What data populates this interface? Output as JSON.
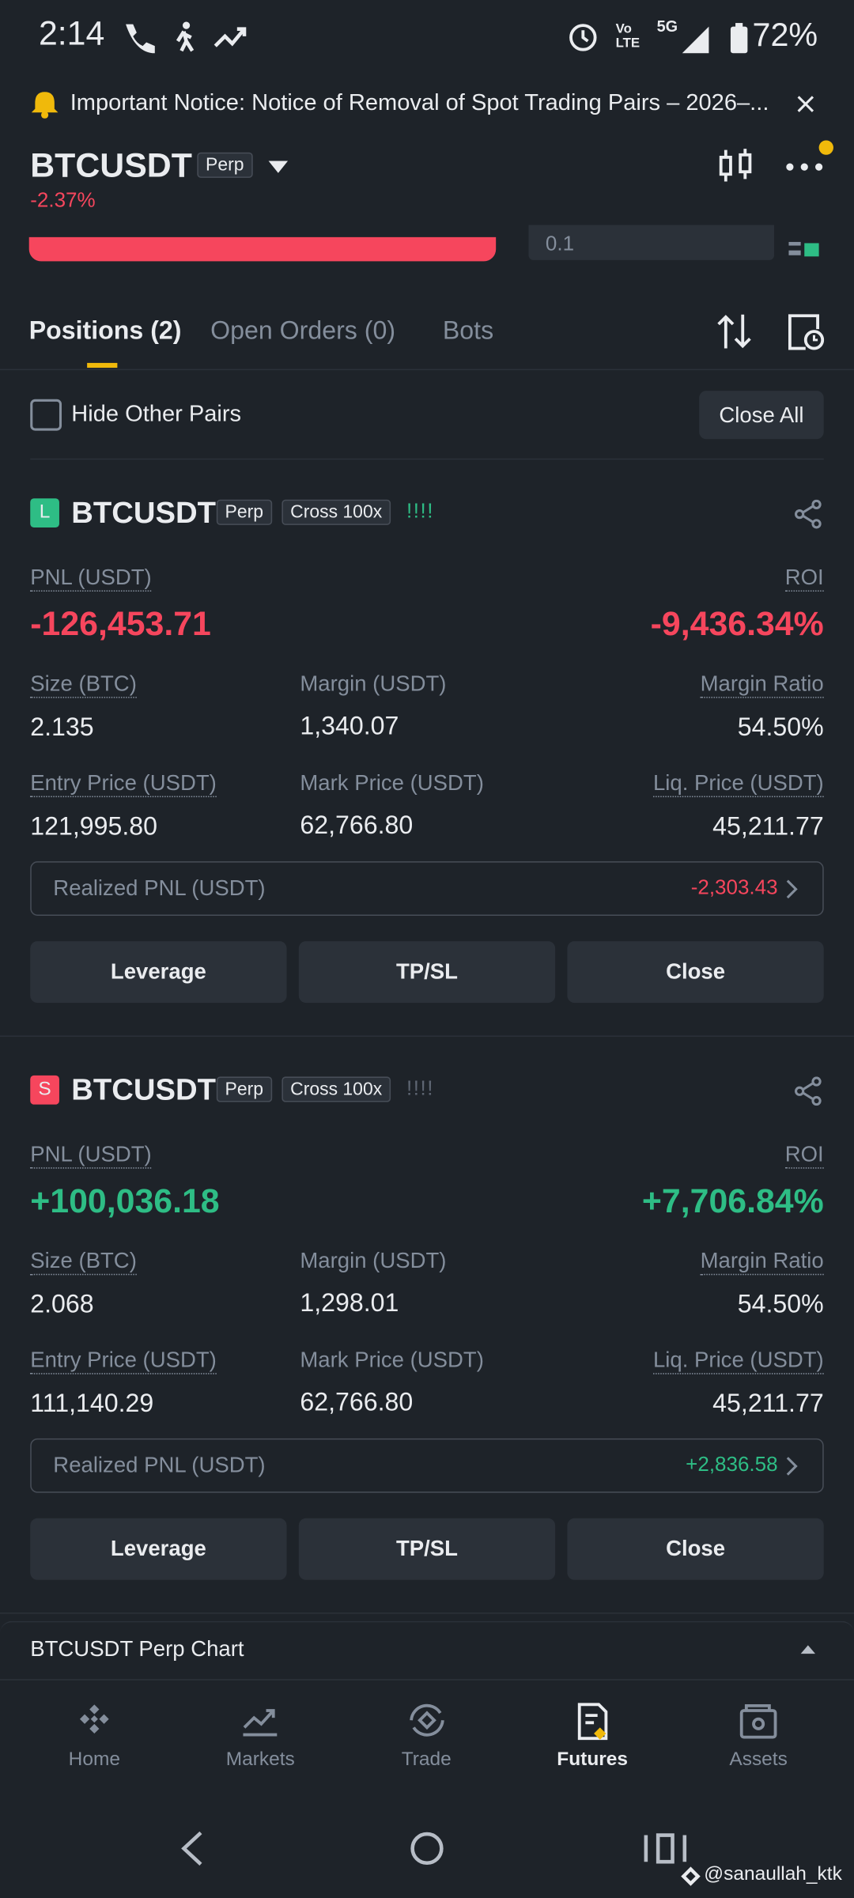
{
  "status_bar": {
    "time": "2:14",
    "vo": "Vo",
    "lte": "LTE",
    "network": "5G",
    "battery": "72%"
  },
  "notice": "Important Notice: Notice of Removal of Spot Trading Pairs – 2026–...",
  "header": {
    "symbol": "BTCUSDT",
    "badge": "Perp",
    "change": "-2.37%"
  },
  "order_amount": "0.1",
  "tabs": [
    "Positions (2)",
    "Open Orders (0)",
    "Bots"
  ],
  "filter": {
    "label": "Hide Other Pairs",
    "button": "Close All"
  },
  "positions": [
    {
      "side": "L",
      "symbol": "BTCUSDT",
      "badges": [
        "Perp",
        "Cross 100x"
      ],
      "signal": "!!!!",
      "pnl_label": "PNL (USDT)",
      "pnl": "-126,453.71",
      "roi_label": "ROI",
      "roi": "-9,436.34%",
      "fields": [
        {
          "label": "Size (BTC)",
          "value": "2.135"
        },
        {
          "label": "Margin (USDT)",
          "value": "1,340.07"
        },
        {
          "label": "Margin Ratio",
          "value": "54.50%"
        },
        {
          "label": "Entry Price (USDT)",
          "value": "121,995.80"
        },
        {
          "label": "Mark Price (USDT)",
          "value": "62,766.80"
        },
        {
          "label": "Liq. Price (USDT)",
          "value": "45,211.77"
        }
      ],
      "realized_label": "Realized PNL (USDT)",
      "realized": "-2,303.43",
      "buttons": [
        "Leverage",
        "TP/SL",
        "Close"
      ]
    },
    {
      "side": "S",
      "symbol": "BTCUSDT",
      "badges": [
        "Perp",
        "Cross 100x"
      ],
      "signal": "!!!!",
      "pnl_label": "PNL (USDT)",
      "pnl": "+100,036.18",
      "roi_label": "ROI",
      "roi": "+7,706.84%",
      "fields": [
        {
          "label": "Size (BTC)",
          "value": "2.068"
        },
        {
          "label": "Margin (USDT)",
          "value": "1,298.01"
        },
        {
          "label": "Margin Ratio",
          "value": "54.50%"
        },
        {
          "label": "Entry Price (USDT)",
          "value": "111,140.29"
        },
        {
          "label": "Mark Price (USDT)",
          "value": "62,766.80"
        },
        {
          "label": "Liq. Price (USDT)",
          "value": "45,211.77"
        }
      ],
      "realized_label": "Realized PNL (USDT)",
      "realized": "+2,836.58",
      "buttons": [
        "Leverage",
        "TP/SL",
        "Close"
      ]
    }
  ],
  "chart_bar": "BTCUSDT Perp Chart",
  "nav": [
    "Home",
    "Markets",
    "Trade",
    "Futures",
    "Assets"
  ],
  "watermark": "@sanaullah_ktk"
}
